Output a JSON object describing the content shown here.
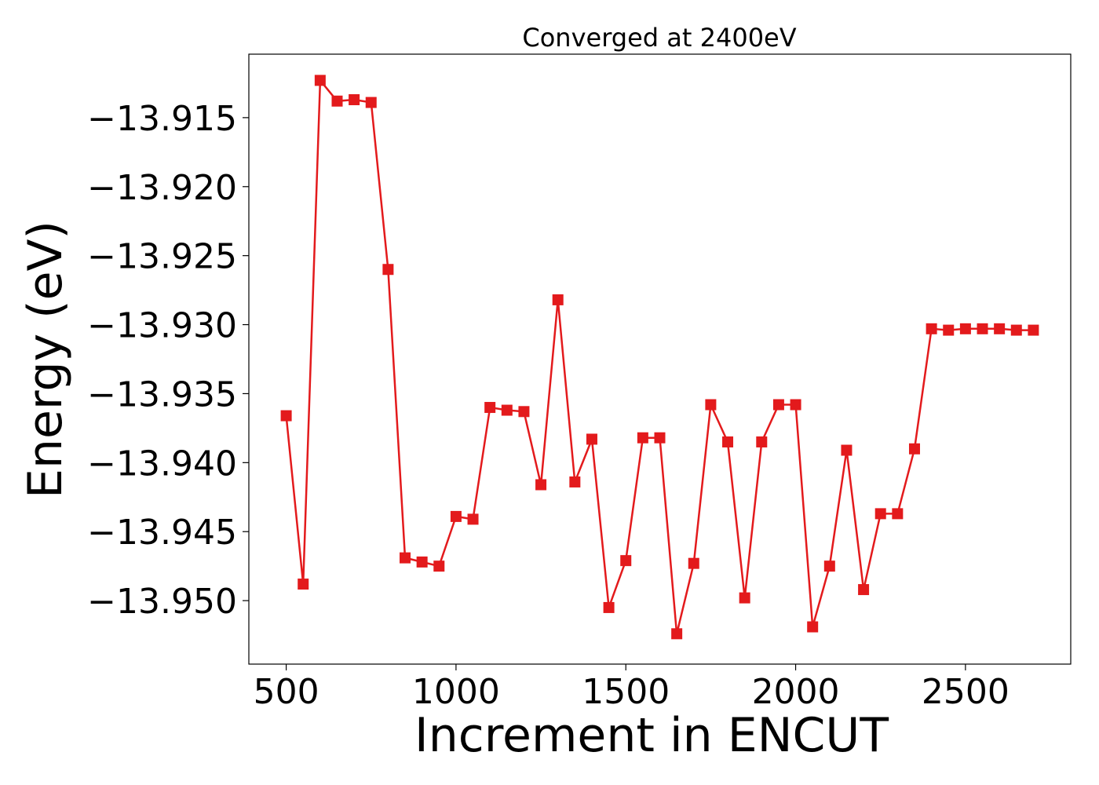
{
  "chart_data": {
    "type": "line",
    "title": "Converged at 2400eV",
    "xlabel": "Increment in ENCUT",
    "ylabel": "Energy (eV)",
    "xlim": [
      390,
      2810
    ],
    "ylim": [
      -13.9546,
      -13.9104
    ],
    "xticks": [
      500,
      1000,
      1500,
      2000,
      2500
    ],
    "xtick_labels": [
      "500",
      "1000",
      "1500",
      "2000",
      "2500"
    ],
    "yticks": [
      -13.915,
      -13.92,
      -13.925,
      -13.93,
      -13.935,
      -13.94,
      -13.945,
      -13.95
    ],
    "ytick_labels": [
      "−13.915",
      "−13.920",
      "−13.925",
      "−13.930",
      "−13.935",
      "−13.940",
      "−13.945",
      "−13.950"
    ],
    "grid": false,
    "marker": "square",
    "series": [
      {
        "color": "#e31a1c",
        "x": [
          500,
          550,
          600,
          650,
          700,
          750,
          800,
          850,
          900,
          950,
          1000,
          1050,
          1100,
          1150,
          1200,
          1250,
          1300,
          1350,
          1400,
          1450,
          1500,
          1550,
          1600,
          1650,
          1700,
          1750,
          1800,
          1850,
          1900,
          1950,
          2000,
          2050,
          2100,
          2150,
          2200,
          2250,
          2300,
          2350,
          2400,
          2450,
          2500,
          2550,
          2600,
          2650,
          2700
        ],
        "y": [
          -13.9366,
          -13.9488,
          -13.9123,
          -13.9138,
          -13.9137,
          -13.9139,
          -13.926,
          -13.9469,
          -13.9472,
          -13.9475,
          -13.9439,
          -13.9441,
          -13.936,
          -13.9362,
          -13.9363,
          -13.9416,
          -13.9282,
          -13.9414,
          -13.9383,
          -13.9505,
          -13.9471,
          -13.9382,
          -13.9382,
          -13.9524,
          -13.9473,
          -13.9358,
          -13.9385,
          -13.9498,
          -13.9385,
          -13.9358,
          -13.9358,
          -13.9519,
          -13.9475,
          -13.9391,
          -13.9492,
          -13.9437,
          -13.9437,
          -13.939,
          -13.9303,
          -13.9304,
          -13.9303,
          -13.9303,
          -13.9303,
          -13.9304,
          -13.9304
        ]
      }
    ]
  }
}
